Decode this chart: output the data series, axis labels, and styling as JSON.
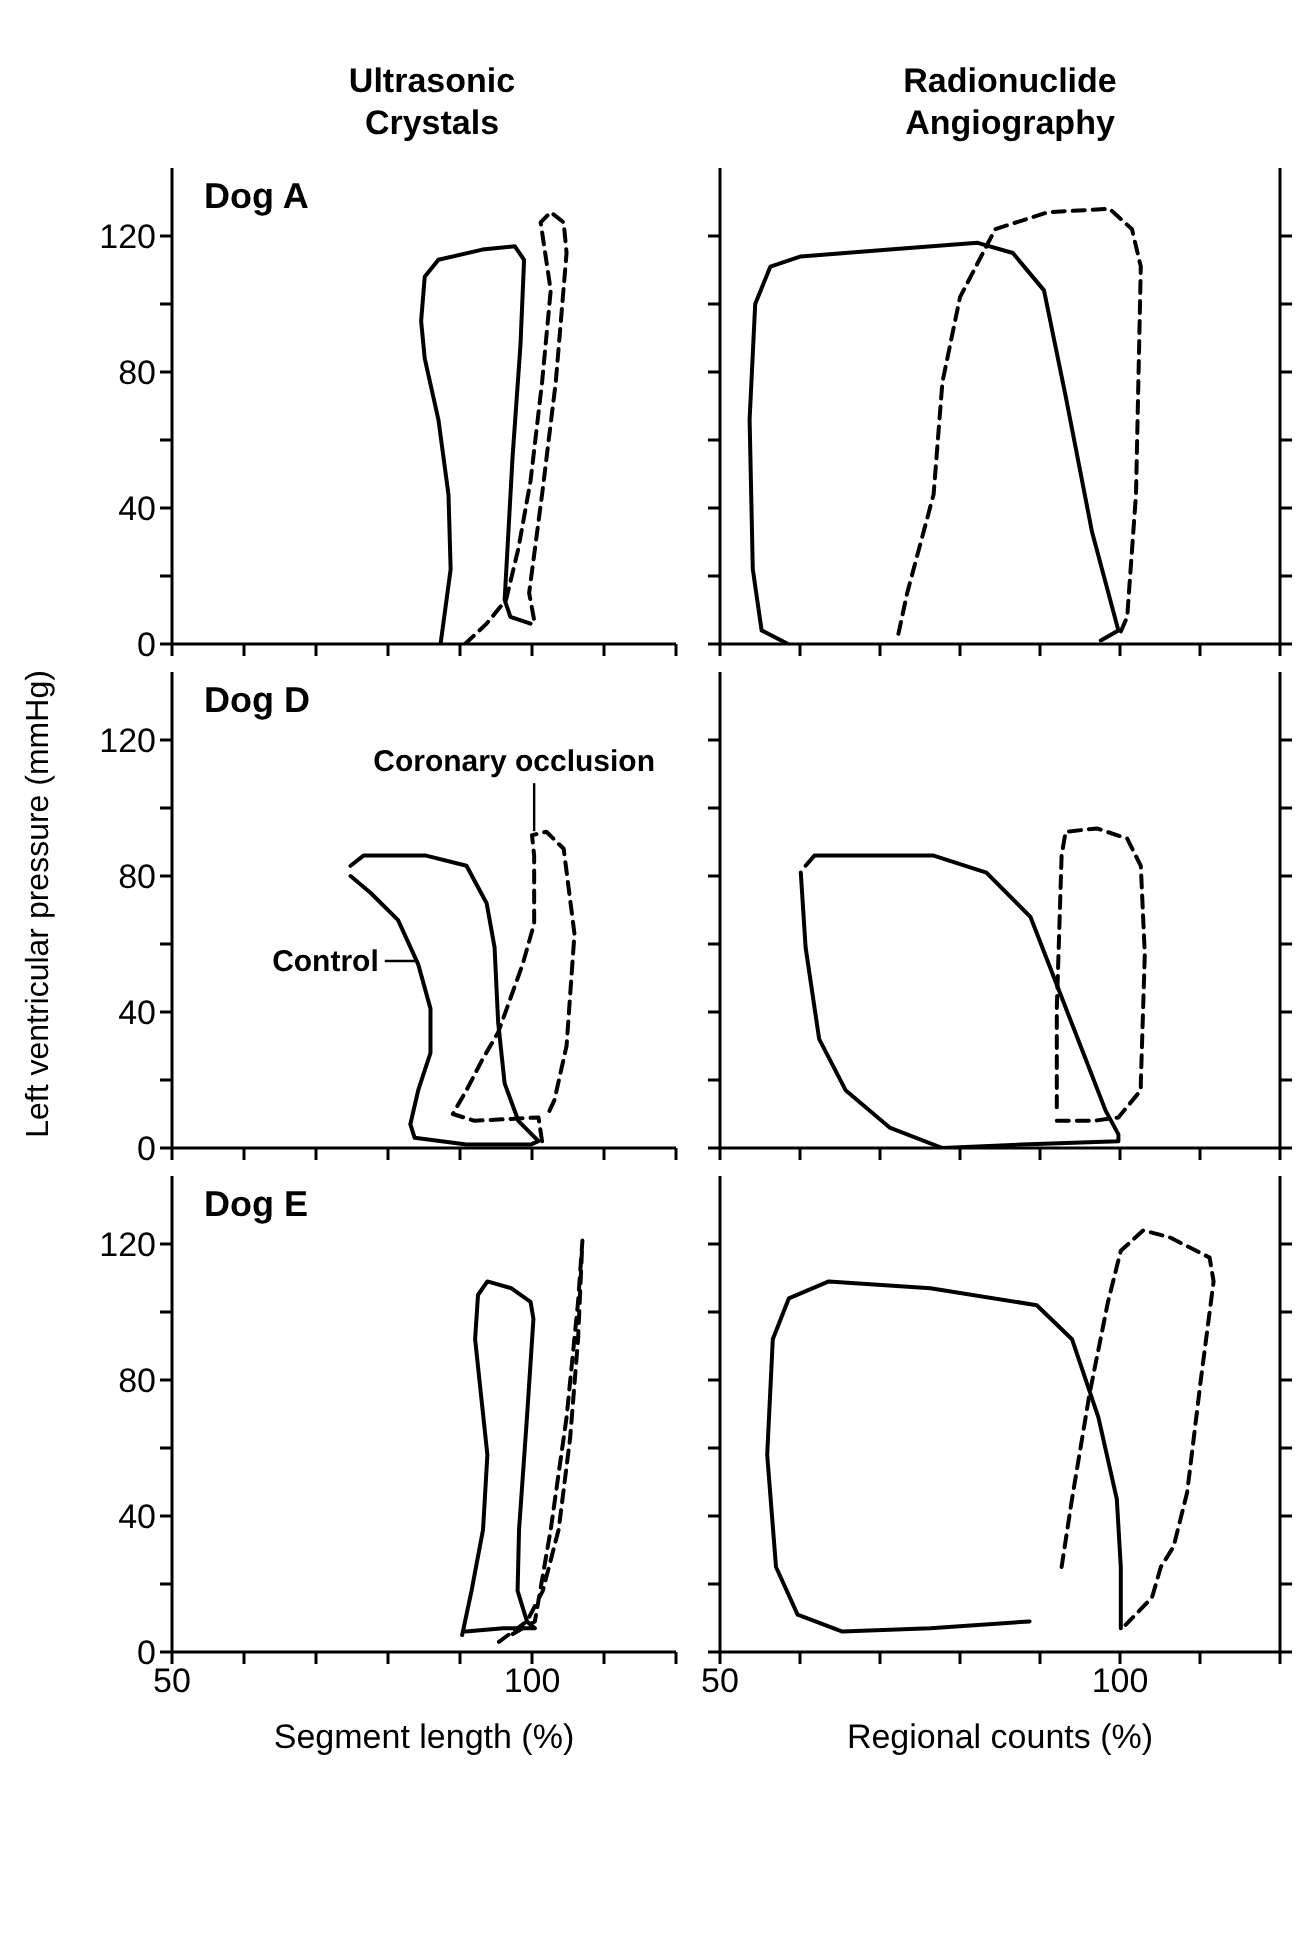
{
  "chart_data": [
    {
      "type": "line",
      "title": "Ultrasonic Crystals",
      "annotations": [
        "Dog A"
      ],
      "marker": "none",
      "tick_labels": "y",
      "xlim": [
        50,
        120
      ],
      "xticks": [
        50,
        60,
        70,
        80,
        90,
        100,
        110,
        120
      ],
      "ylim": [
        0,
        140
      ],
      "yticks": [
        0,
        {
          "value": 20,
          "label": null
        },
        40,
        {
          "value": 60,
          "label": null
        },
        80,
        {
          "value": 100,
          "label": null
        },
        120
      ],
      "series": [
        {
          "color": "#000000",
          "line_style": "solid",
          "x": [
            87.3,
            88.7,
            88.4,
            87,
            85.1,
            84.6,
            85.1,
            87,
            93.1,
            97.6,
            98.9,
            98.4,
            97.3,
            96.2,
            97,
            99.8
          ],
          "values": [
            0,
            22,
            44,
            66,
            84,
            95,
            108,
            113,
            116,
            117,
            113,
            88,
            55,
            13,
            8,
            6
          ]
        },
        {
          "color": "#000000",
          "line_style": "dashed",
          "x": [
            90.7,
            93.7,
            96.4,
            98.1,
            99.8,
            101.4,
            102.6,
            101.2,
            102.6,
            104.4,
            104.8,
            103.3,
            101.4,
            99.6,
            100.3
          ],
          "values": [
            0,
            6,
            13,
            28,
            48,
            77,
            104,
            124,
            127,
            124,
            115,
            77,
            44,
            15,
            7
          ]
        }
      ]
    },
    {
      "type": "line",
      "title": "Radionuclide Angiography",
      "marker": "none",
      "tick_labels": false,
      "xlim": [
        50,
        120
      ],
      "xticks": [
        50,
        60,
        70,
        80,
        90,
        100,
        110,
        120
      ],
      "ylim": [
        0,
        140
      ],
      "yticks": [
        0,
        20,
        40,
        60,
        80,
        100,
        120
      ],
      "series": [
        {
          "color": "#000000",
          "line_style": "solid",
          "x": [
            58.5,
            55.2,
            54.1,
            53.7,
            54.4,
            56.3,
            60.1,
            71.2,
            82.2,
            86.6,
            90.5,
            93.2,
            96.5,
            99.8,
            97.6
          ],
          "values": [
            0,
            4,
            22,
            66,
            100,
            111,
            114,
            116,
            118,
            115,
            104,
            73,
            33,
            4,
            1
          ]
        },
        {
          "color": "#000000",
          "line_style": "dashed",
          "x": [
            72.3,
            73.4,
            76.7,
            77.8,
            80,
            84.4,
            91,
            98.7,
            101.5,
            102.6,
            102,
            100.9,
            99.8
          ],
          "values": [
            3,
            15,
            44,
            77,
            102,
            122,
            127,
            128,
            122,
            111,
            44,
            8,
            2
          ]
        }
      ]
    },
    {
      "type": "line",
      "ylabel": "Left ventricular pressure (mmHg)",
      "annotations": [
        "Dog D",
        {
          "text": "Control",
          "x": 84,
          "y": 55
        },
        {
          "text": "Coronary occlusion",
          "x": 100.3,
          "y": 92
        }
      ],
      "marker": "none",
      "tick_labels": "y",
      "xlim": [
        50,
        120
      ],
      "xticks": [
        50,
        60,
        70,
        80,
        90,
        100,
        110,
        120
      ],
      "ylim": [
        0,
        140
      ],
      "yticks": [
        0,
        {
          "value": 20,
          "label": null
        },
        40,
        {
          "value": 60,
          "label": null
        },
        80,
        {
          "value": 100,
          "label": null
        },
        120
      ],
      "series": [
        {
          "color": "#000000",
          "line_style": "solid",
          "x": [
            74.8,
            76.6,
            85.3,
            90.9,
            93.7,
            94.8,
            95.3,
            96.2,
            98.1,
            100.9,
            99.8,
            90.9,
            83.7,
            83.1,
            84.2,
            85.9,
            85.9,
            84.2,
            81.4,
            77.6,
            74.8
          ],
          "values": [
            83,
            86,
            86,
            83,
            72,
            59,
            37,
            19,
            8,
            2,
            1,
            1,
            3,
            7,
            17,
            28,
            41,
            54,
            67,
            75,
            80
          ]
        },
        {
          "color": "#000000",
          "line_style": "dashed",
          "x": [
            101.4,
            100.9,
            92,
            89,
            90.9,
            93.1,
            95.3,
            98.7,
            100.3,
            100.3,
            100,
            102,
            104.4,
            105.9,
            104.8,
            103.1,
            102
          ],
          "values": [
            2,
            9,
            8,
            10,
            17,
            26,
            34,
            54,
            66,
            86,
            92,
            93,
            88,
            63,
            30,
            14,
            9
          ]
        }
      ]
    },
    {
      "type": "line",
      "marker": "none",
      "tick_labels": false,
      "xlim": [
        50,
        120
      ],
      "xticks": [
        50,
        60,
        70,
        80,
        90,
        100,
        110,
        120
      ],
      "ylim": [
        0,
        140
      ],
      "yticks": [
        0,
        20,
        40,
        60,
        80,
        100,
        120
      ],
      "series": [
        {
          "color": "#000000",
          "line_style": "solid",
          "x": [
            60.7,
            61.8,
            76.7,
            83.3,
            88.8,
            92.1,
            95.4,
            98.2,
            99.8,
            99.8,
            87.7,
            77.8,
            71.2,
            65.7,
            62.4,
            60.7,
            60.1
          ],
          "values": [
            83,
            86,
            86,
            81,
            68,
            48,
            28,
            11,
            4,
            2,
            1,
            0,
            6,
            17,
            32,
            59,
            81
          ]
        },
        {
          "color": "#000000",
          "line_style": "dashed",
          "x": [
            92.1,
            96.7,
            99.8,
            102.6,
            102.6,
            103.1,
            102.6,
            100.9,
            97.1,
            93.2,
            92.7,
            92.1,
            92.1,
            92.1
          ],
          "values": [
            8,
            8,
            9,
            17,
            19,
            57,
            83,
            91,
            94,
            93,
            86,
            41,
            17,
            12
          ]
        }
      ]
    },
    {
      "type": "line",
      "xlabel": "Segment length (%)",
      "annotations": [
        "Dog E"
      ],
      "marker": "none",
      "xlim": [
        50,
        120
      ],
      "xticks": [
        {
          "value": 50,
          "label": "50"
        },
        {
          "value": 60,
          "label": null
        },
        {
          "value": 70,
          "label": null
        },
        {
          "value": 80,
          "label": null
        },
        {
          "value": 90,
          "label": null
        },
        {
          "value": 100,
          "label": "100"
        },
        {
          "value": 110,
          "label": null
        },
        {
          "value": 120,
          "label": null
        }
      ],
      "ylim": [
        0,
        140
      ],
      "yticks": [
        0,
        {
          "value": 20,
          "label": null
        },
        40,
        {
          "value": 60,
          "label": null
        },
        80,
        {
          "value": 100,
          "label": null
        },
        120
      ],
      "series": [
        {
          "color": "#000000",
          "line_style": "dashed",
          "x": [
            95.4,
            99.3,
            101.5,
            103.7,
            105.3,
            106.4,
            107,
            106.4,
            104.8,
            102.6,
            100.4,
            97.1
          ],
          "values": [
            3,
            9,
            18,
            36,
            63,
            92,
            121,
            103,
            69,
            36,
            9,
            5
          ]
        },
        {
          "color": "#000000",
          "line_style": "solid",
          "x": [
            90.3,
            91.6,
            93.2,
            93.8,
            92.9,
            92.1,
            92.5,
            93.8,
            97.1,
            99.8,
            100.2,
            99.3,
            98.2,
            98,
            99.3,
            100.4,
            96,
            90.8
          ],
          "values": [
            5,
            18,
            36,
            58,
            76,
            92,
            105,
            109,
            107,
            103,
            98,
            69,
            36,
            18,
            9,
            7,
            7,
            6
          ]
        }
      ]
    },
    {
      "type": "line",
      "xlabel": "Regional counts (%)",
      "marker": "none",
      "tick_labels": "x",
      "xlim": [
        50,
        120
      ],
      "xticks": [
        {
          "value": 50,
          "label": "50"
        },
        {
          "value": 60,
          "label": null
        },
        {
          "value": 70,
          "label": null
        },
        {
          "value": 80,
          "label": null
        },
        {
          "value": 90,
          "label": null
        },
        {
          "value": 100,
          "label": "100"
        },
        {
          "value": 110,
          "label": null
        },
        {
          "value": 120,
          "label": null
        }
      ],
      "ylim": [
        0,
        140
      ],
      "yticks": [
        0,
        20,
        40,
        60,
        80,
        100,
        120
      ],
      "series": [
        {
          "color": "#000000",
          "line_style": "solid",
          "x": [
            88.7,
            76.3,
            65.3,
            59.7,
            57,
            55.9,
            56.6,
            58.6,
            63.6,
            76.3,
            89.6,
            94,
            97.3,
            99.6,
            100.1,
            100.1
          ],
          "values": [
            9,
            7,
            6,
            11,
            25,
            58,
            92,
            104,
            109,
            107,
            102,
            92,
            69,
            45,
            25,
            7
          ]
        },
        {
          "color": "#000000",
          "line_style": "dashed",
          "x": [
            92.7,
            94,
            96.2,
            98.5,
            100.1,
            102.9,
            106.2,
            111.2,
            111.7,
            110.1,
            108.4,
            106.7,
            105.1,
            104,
            100.7
          ],
          "values": [
            25,
            45,
            76,
            103,
            118,
            124,
            122,
            116,
            109,
            80,
            47,
            31,
            25,
            16,
            8
          ]
        }
      ]
    }
  ]
}
